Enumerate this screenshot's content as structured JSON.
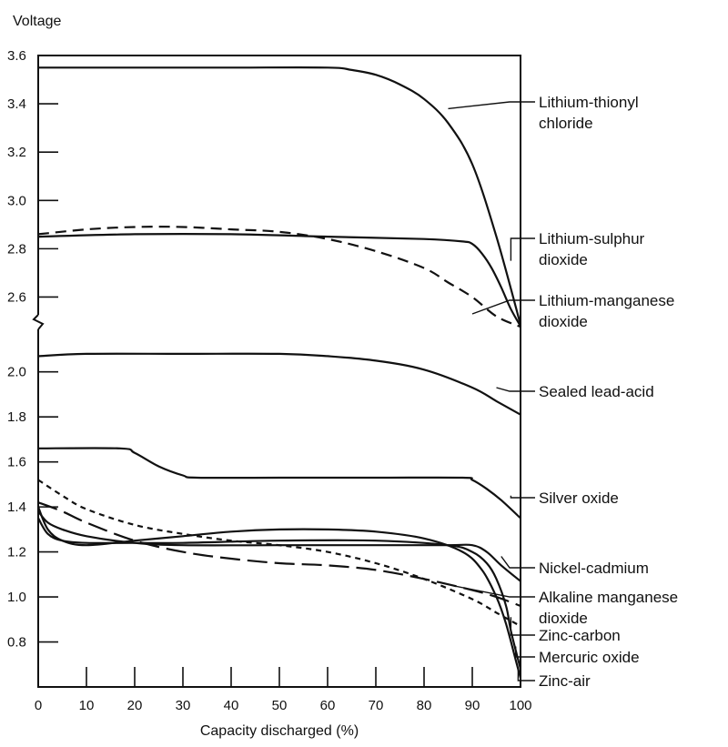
{
  "chart_data": {
    "type": "line",
    "title": "",
    "xlabel": "Capacity discharged (%)",
    "ylabel": "Voltage",
    "xlim": [
      0,
      100
    ],
    "ylim": [
      0.6,
      3.6
    ],
    "axis_break": {
      "lower_top": 2.1,
      "upper_bottom": 2.5
    },
    "grid": false,
    "x_ticks": [
      0,
      10,
      20,
      30,
      40,
      50,
      60,
      70,
      80,
      90,
      100
    ],
    "y_tick_labels": [
      {
        "value": 0.8,
        "label": "0.8"
      },
      {
        "value": 1.0,
        "label": "1.0"
      },
      {
        "value": 1.2,
        "label": "1.2"
      },
      {
        "value": 1.4,
        "label": "1.4"
      },
      {
        "value": 1.6,
        "label": "1.6"
      },
      {
        "value": 1.8,
        "label": "1.8"
      },
      {
        "value": 2.0,
        "label": "2.0"
      },
      {
        "value": 2.6,
        "label": "2.6"
      },
      {
        "value": 2.8,
        "label": "2.8"
      },
      {
        "value": 3.0,
        "label": "3.0"
      },
      {
        "value": 3.2,
        "label": "3.2"
      },
      {
        "value": 3.4,
        "label": "3.4"
      },
      {
        "value": 3.6,
        "label": "3.6"
      }
    ],
    "series": [
      {
        "name": "Lithium-thionyl chloride",
        "label_lines": [
          "Lithium-thionyl",
          "chloride"
        ],
        "style": "solid",
        "x": [
          0,
          20,
          40,
          60,
          65,
          70,
          75,
          80,
          85,
          90,
          95,
          100
        ],
        "y": [
          3.55,
          3.55,
          3.55,
          3.55,
          3.54,
          3.52,
          3.48,
          3.42,
          3.32,
          3.15,
          2.85,
          2.45
        ],
        "pointer": {
          "x": 85,
          "y": 3.38
        }
      },
      {
        "name": "Lithium-sulphur dioxide",
        "label_lines": [
          "Lithium-sulphur",
          "dioxide"
        ],
        "style": "solid",
        "x": [
          0,
          20,
          40,
          60,
          80,
          88,
          90,
          92,
          94,
          96,
          98,
          100
        ],
        "y": [
          2.85,
          2.86,
          2.86,
          2.85,
          2.84,
          2.83,
          2.82,
          2.78,
          2.72,
          2.64,
          2.55,
          2.43
        ],
        "pointer": {
          "x": 98,
          "y": 2.75
        }
      },
      {
        "name": "Lithium-manganese dioxide",
        "label_lines": [
          "Lithium-manganese",
          "dioxide"
        ],
        "style": "dashed",
        "x": [
          0,
          10,
          20,
          30,
          40,
          50,
          60,
          70,
          80,
          85,
          90,
          95,
          100
        ],
        "y": [
          2.86,
          2.88,
          2.89,
          2.89,
          2.88,
          2.87,
          2.84,
          2.79,
          2.72,
          2.66,
          2.6,
          2.52,
          2.42
        ],
        "pointer": {
          "x": 90,
          "y": 2.53
        }
      },
      {
        "name": "Sealed lead-acid",
        "label_lines": [
          "Sealed lead-acid"
        ],
        "style": "solid",
        "x": [
          0,
          10,
          30,
          50,
          60,
          70,
          80,
          90,
          95,
          100
        ],
        "y": [
          2.07,
          2.08,
          2.08,
          2.08,
          2.07,
          2.05,
          2.01,
          1.93,
          1.87,
          1.81
        ],
        "pointer": {
          "x": 95,
          "y": 1.93
        }
      },
      {
        "name": "Silver oxide",
        "label_lines": [
          "Silver oxide"
        ],
        "style": "solid",
        "x": [
          0,
          17,
          20,
          25,
          30,
          33,
          50,
          70,
          88,
          90,
          93,
          96,
          100
        ],
        "y": [
          1.66,
          1.66,
          1.64,
          1.58,
          1.54,
          1.53,
          1.53,
          1.53,
          1.53,
          1.52,
          1.48,
          1.43,
          1.35
        ],
        "pointer": {
          "x": 98,
          "y": 1.45
        }
      },
      {
        "name": "Nickel-cadmium",
        "label_lines": [
          "Nickel-cadmium"
        ],
        "style": "solid",
        "x": [
          0,
          2,
          5,
          10,
          20,
          30,
          50,
          70,
          85,
          90,
          93,
          96,
          100
        ],
        "y": [
          1.38,
          1.33,
          1.3,
          1.27,
          1.24,
          1.23,
          1.23,
          1.23,
          1.23,
          1.23,
          1.2,
          1.14,
          1.07
        ],
        "pointer": {
          "x": 96,
          "y": 1.18
        }
      },
      {
        "name": "Alkaline manganese dioxide",
        "label_lines": [
          "Alkaline manganese",
          "dioxide"
        ],
        "style": "longdash",
        "x": [
          0,
          5,
          10,
          20,
          30,
          40,
          50,
          60,
          70,
          80,
          90,
          95,
          100
        ],
        "y": [
          1.42,
          1.38,
          1.33,
          1.25,
          1.2,
          1.17,
          1.15,
          1.14,
          1.12,
          1.08,
          1.03,
          1.0,
          0.96
        ],
        "pointer": {
          "x": 86,
          "y": 1.05
        }
      },
      {
        "name": "Zinc-carbon",
        "label_lines": [
          "Zinc-carbon"
        ],
        "style": "shortdash",
        "x": [
          0,
          5,
          10,
          20,
          30,
          40,
          50,
          60,
          70,
          80,
          90,
          95,
          100
        ],
        "y": [
          1.52,
          1.45,
          1.39,
          1.32,
          1.28,
          1.25,
          1.23,
          1.2,
          1.15,
          1.08,
          0.99,
          0.93,
          0.87
        ],
        "pointer": {
          "x": 98,
          "y": 0.91
        }
      },
      {
        "name": "Mercuric oxide",
        "label_lines": [
          "Mercuric oxide"
        ],
        "style": "solid",
        "x": [
          0,
          2,
          5,
          10,
          20,
          30,
          50,
          70,
          85,
          90,
          93,
          95,
          97,
          98,
          100
        ],
        "y": [
          1.35,
          1.28,
          1.25,
          1.24,
          1.24,
          1.24,
          1.25,
          1.25,
          1.23,
          1.2,
          1.15,
          1.08,
          0.96,
          0.85,
          0.68
        ],
        "pointer": {
          "x": 99,
          "y": 0.78
        }
      },
      {
        "name": "Zinc-air",
        "label_lines": [
          "Zinc-air"
        ],
        "style": "solid",
        "x": [
          0,
          2,
          5,
          10,
          20,
          30,
          40,
          50,
          60,
          70,
          80,
          88,
          92,
          95,
          97,
          99,
          100
        ],
        "y": [
          1.4,
          1.3,
          1.25,
          1.23,
          1.25,
          1.27,
          1.29,
          1.3,
          1.3,
          1.29,
          1.26,
          1.2,
          1.12,
          1.0,
          0.88,
          0.72,
          0.64
        ],
        "pointer": {
          "x": 99.5,
          "y": 0.68
        }
      }
    ]
  }
}
